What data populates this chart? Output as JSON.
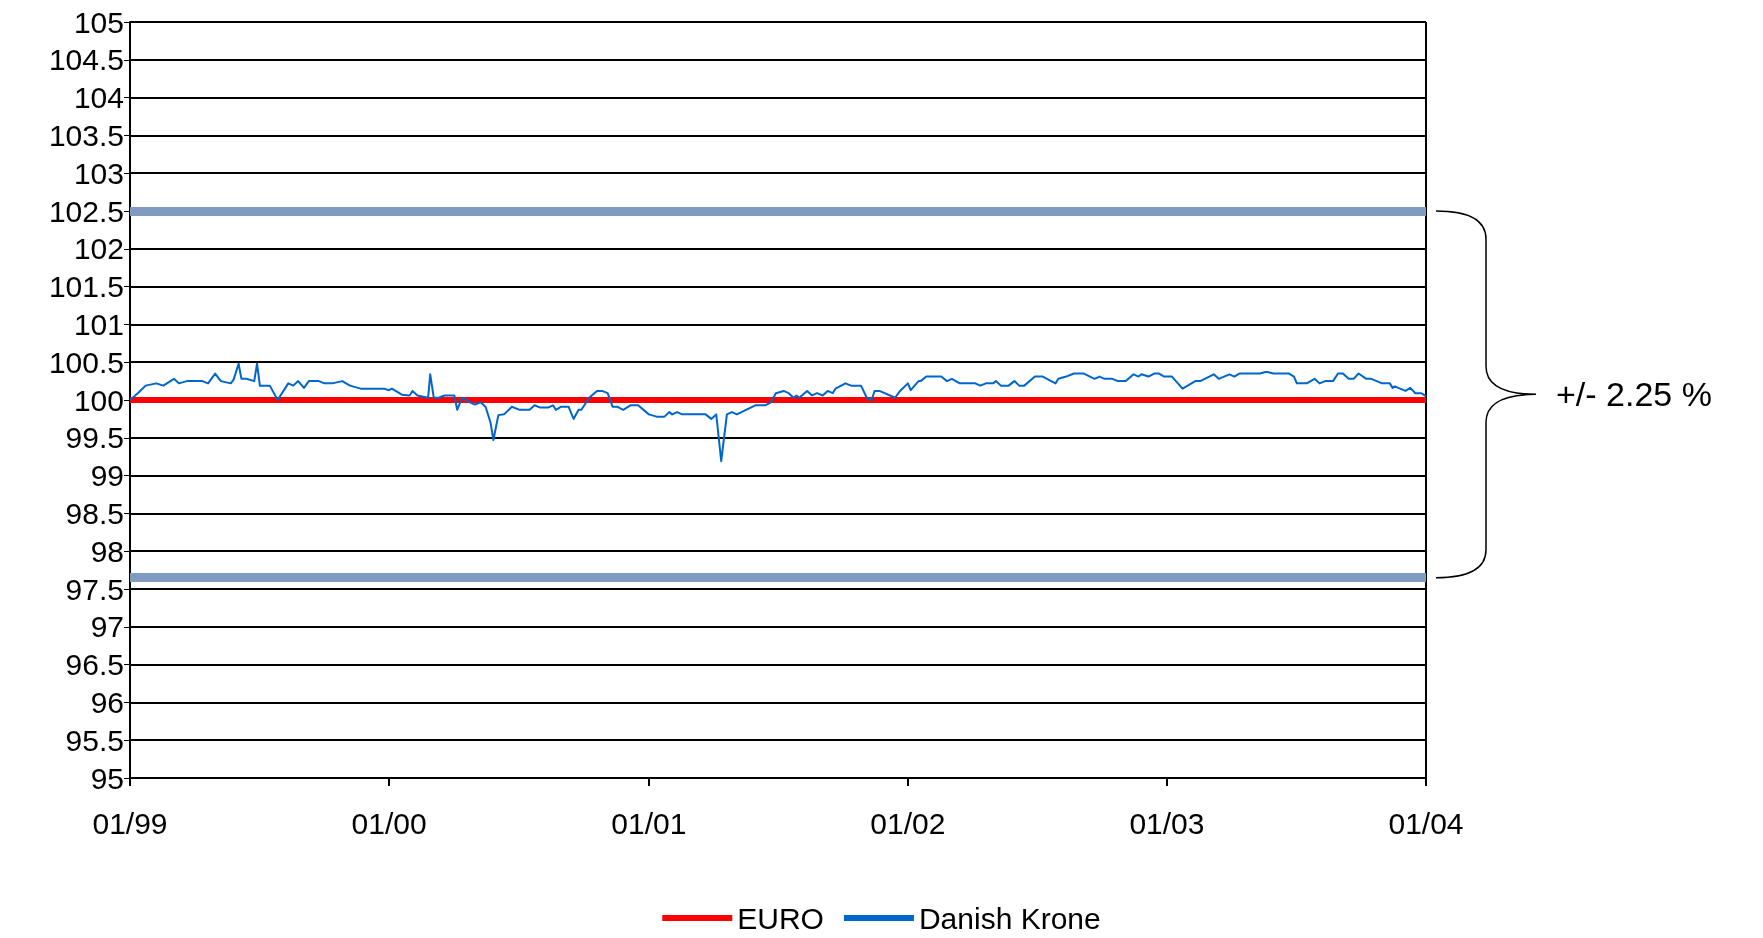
{
  "chart_data": {
    "type": "line",
    "xlim": [
      "1999-01-01",
      "2004-01-01"
    ],
    "xticks": [
      {
        "value": "1999-01-01",
        "label": "01/99"
      },
      {
        "value": "2000-01-01",
        "label": "01/00"
      },
      {
        "value": "2001-01-01",
        "label": "01/01"
      },
      {
        "value": "2002-01-01",
        "label": "01/02"
      },
      {
        "value": "2003-01-01",
        "label": "01/03"
      },
      {
        "value": "2004-01-01",
        "label": "01/04"
      }
    ],
    "ylim": [
      95,
      105
    ],
    "yticks": [
      95,
      95.5,
      96,
      96.5,
      97,
      97.5,
      98,
      98.5,
      99,
      99.5,
      100,
      100.5,
      101,
      101.5,
      102,
      102.5,
      103,
      103.5,
      104,
      104.5,
      105
    ],
    "grid": "y",
    "legend": "bottom",
    "ref_lines": [
      {
        "axis": "y",
        "value": 102.5,
        "label": null,
        "color": "#7f9cc0"
      },
      {
        "axis": "y",
        "value": 97.65,
        "label": null,
        "color": "#7f9cc0"
      }
    ],
    "annotations": [
      "+/- 2.25 %"
    ],
    "series": [
      {
        "name": "EURO",
        "color": "#ff0000",
        "x": [
          "1999-01-01",
          "2004-01-01"
        ],
        "values": [
          100,
          100
        ]
      },
      {
        "name": "Danish Krone",
        "color": "#0066cc",
        "x": [
          "1999-01-01",
          "1999-01-12",
          "1999-01-23",
          "1999-02-07",
          "1999-02-17",
          "1999-03-04",
          "1999-03-11",
          "1999-03-22",
          "1999-04-13",
          "1999-04-21",
          "1999-05-01",
          "1999-05-09",
          "1999-05-23",
          "1999-05-27",
          "1999-06-03",
          "1999-06-07",
          "1999-06-14",
          "1999-06-25",
          "1999-06-29",
          "1999-07-03",
          "1999-07-17",
          "1999-07-28",
          "1999-08-12",
          "1999-08-19",
          "1999-08-26",
          "1999-09-03",
          "1999-09-10",
          "1999-09-24",
          "1999-10-02",
          "1999-10-13",
          "1999-10-27",
          "1999-11-07",
          "1999-11-22",
          "1999-12-25",
          "2000-01-01",
          "2000-01-05",
          "2000-01-19",
          "2000-01-30",
          "2000-02-03",
          "2000-02-10",
          "2000-02-25",
          "2000-02-28",
          "2000-03-04",
          "2000-03-11",
          "2000-03-19",
          "2000-04-02",
          "2000-04-06",
          "2000-04-13",
          "2000-04-24",
          "2000-05-01",
          "2000-05-09",
          "2000-05-16",
          "2000-05-23",
          "2000-05-27",
          "2000-06-03",
          "2000-06-11",
          "2000-06-22",
          "2000-07-03",
          "2000-07-17",
          "2000-07-24",
          "2000-08-01",
          "2000-08-12",
          "2000-08-19",
          "2000-08-23",
          "2000-08-30",
          "2000-09-10",
          "2000-09-17",
          "2000-09-24",
          "2000-09-28",
          "2000-10-09",
          "2000-10-20",
          "2000-10-27",
          "2000-11-04",
          "2000-11-11",
          "2000-11-18",
          "2000-11-26",
          "2000-12-06",
          "2000-12-17",
          "2001-01-01",
          "2001-01-12",
          "2001-01-23",
          "2001-01-30",
          "2001-02-03",
          "2001-02-10",
          "2001-02-17",
          "2001-03-22",
          "2001-03-30",
          "2001-04-06",
          "2001-04-13",
          "2001-04-21",
          "2001-04-28",
          "2001-05-05",
          "2001-05-31",
          "2001-06-14",
          "2001-06-22",
          "2001-06-29",
          "2001-07-10",
          "2001-07-17",
          "2001-07-24",
          "2001-07-28",
          "2001-08-01",
          "2001-08-12",
          "2001-08-19",
          "2001-08-26",
          "2001-09-03",
          "2001-09-10",
          "2001-09-17",
          "2001-09-21",
          "2001-10-05",
          "2001-10-13",
          "2001-10-27",
          "2001-11-04",
          "2001-11-11",
          "2001-11-15",
          "2001-11-22",
          "2001-12-14",
          "2001-12-21",
          "2002-01-01",
          "2002-01-05",
          "2002-01-16",
          "2002-01-19",
          "2002-01-27",
          "2002-02-17",
          "2002-02-25",
          "2002-03-04",
          "2002-03-15",
          "2002-04-06",
          "2002-04-13",
          "2002-04-21",
          "2002-05-01",
          "2002-05-05",
          "2002-05-12",
          "2002-05-23",
          "2002-05-31",
          "2002-06-07",
          "2002-06-14",
          "2002-06-29",
          "2002-07-10",
          "2002-07-28",
          "2002-08-01",
          "2002-08-12",
          "2002-08-23",
          "2002-09-06",
          "2002-09-21",
          "2002-09-28",
          "2002-10-05",
          "2002-10-16",
          "2002-10-24",
          "2002-11-04",
          "2002-11-15",
          "2002-11-22",
          "2002-11-26",
          "2002-12-06",
          "2002-12-14",
          "2002-12-21",
          "2002-12-28",
          "2003-01-08",
          "2003-01-23",
          "2003-02-10",
          "2003-02-17",
          "2003-03-08",
          "2003-03-15",
          "2003-03-30",
          "2003-04-06",
          "2003-04-13",
          "2003-05-12",
          "2003-05-20",
          "2003-05-23",
          "2003-05-31",
          "2003-06-22",
          "2003-06-29",
          "2003-07-03",
          "2003-07-17",
          "2003-07-28",
          "2003-08-04",
          "2003-08-12",
          "2003-08-23",
          "2003-08-30",
          "2003-09-06",
          "2003-09-14",
          "2003-09-21",
          "2003-09-28",
          "2003-10-09",
          "2003-10-16",
          "2003-10-31",
          "2003-11-11",
          "2003-11-15",
          "2003-11-18",
          "2003-12-03",
          "2003-12-10",
          "2003-12-17",
          "2003-12-25",
          "2004-01-01"
        ],
        "values": [
          100.0,
          100.09,
          100.19,
          100.22,
          100.19,
          100.28,
          100.22,
          100.25,
          100.25,
          100.22,
          100.35,
          100.25,
          100.22,
          100.27,
          100.48,
          100.28,
          100.28,
          100.25,
          100.48,
          100.19,
          100.19,
          100.0,
          100.22,
          100.19,
          100.25,
          100.16,
          100.25,
          100.25,
          100.22,
          100.22,
          100.25,
          100.19,
          100.15,
          100.15,
          100.13,
          100.15,
          100.07,
          100.06,
          100.12,
          100.06,
          100.03,
          100.34,
          100.03,
          100.03,
          100.06,
          100.06,
          99.87,
          100.03,
          99.97,
          99.94,
          99.97,
          99.91,
          99.7,
          99.47,
          99.8,
          99.81,
          99.91,
          99.87,
          99.87,
          99.93,
          99.9,
          99.9,
          99.93,
          99.87,
          99.91,
          99.91,
          99.75,
          99.87,
          99.87,
          100.03,
          100.12,
          100.12,
          100.09,
          99.91,
          99.91,
          99.87,
          99.93,
          99.93,
          99.81,
          99.78,
          99.78,
          99.84,
          99.81,
          99.84,
          99.81,
          99.81,
          99.75,
          99.81,
          99.19,
          99.81,
          99.84,
          99.81,
          99.93,
          99.93,
          99.97,
          100.09,
          100.12,
          100.09,
          100.03,
          100.06,
          100.03,
          100.12,
          100.06,
          100.09,
          100.06,
          100.12,
          100.09,
          100.15,
          100.22,
          100.19,
          100.19,
          100.03,
          100.0,
          100.12,
          100.12,
          100.03,
          100.12,
          100.22,
          100.13,
          100.25,
          100.25,
          100.31,
          100.31,
          100.25,
          100.28,
          100.22,
          100.22,
          100.19,
          100.22,
          100.22,
          100.25,
          100.19,
          100.19,
          100.25,
          100.19,
          100.19,
          100.31,
          100.31,
          100.22,
          100.28,
          100.31,
          100.35,
          100.35,
          100.28,
          100.31,
          100.28,
          100.28,
          100.25,
          100.25,
          100.34,
          100.31,
          100.34,
          100.31,
          100.35,
          100.35,
          100.31,
          100.31,
          100.15,
          100.25,
          100.25,
          100.34,
          100.28,
          100.34,
          100.31,
          100.35,
          100.35,
          100.37,
          100.37,
          100.35,
          100.35,
          100.31,
          100.22,
          100.22,
          100.28,
          100.22,
          100.25,
          100.25,
          100.35,
          100.35,
          100.28,
          100.28,
          100.35,
          100.28,
          100.28,
          100.22,
          100.22,
          100.16,
          100.18,
          100.12,
          100.16,
          100.09,
          100.09,
          100.05
        ]
      }
    ]
  }
}
